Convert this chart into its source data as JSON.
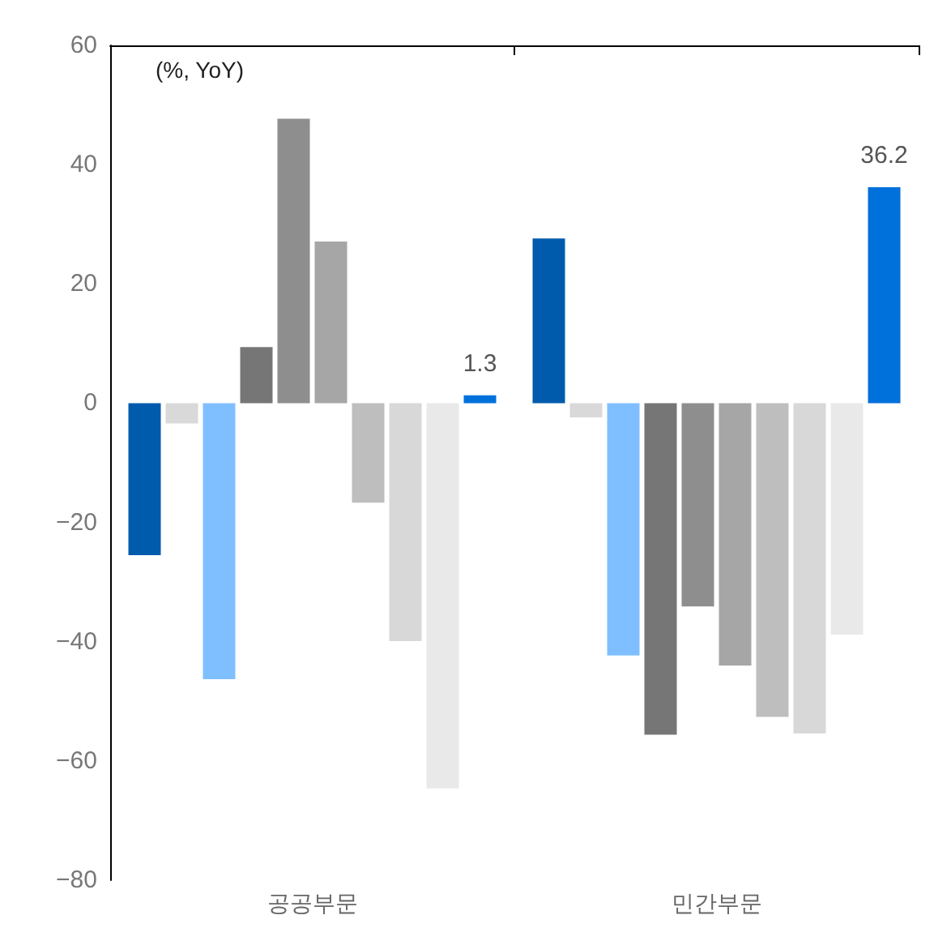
{
  "chart_data": {
    "type": "bar",
    "categories": [
      "공공부문",
      "민간부문"
    ],
    "series": [
      {
        "color": "#005bac",
        "values": [
          -25.5,
          27.6
        ]
      },
      {
        "color": "#d9d9d9",
        "values": [
          -3.4,
          -2.4
        ]
      },
      {
        "color": "#80bfff",
        "values": [
          -46.3,
          -42.3
        ]
      },
      {
        "color": "#767676",
        "values": [
          9.4,
          -55.6
        ]
      },
      {
        "color": "#8e8e8e",
        "values": [
          47.7,
          -34.1
        ]
      },
      {
        "color": "#a6a6a6",
        "values": [
          27.1,
          -44.0
        ]
      },
      {
        "color": "#bebebe",
        "values": [
          -16.7,
          -52.6
        ]
      },
      {
        "color": "#d8d8d8",
        "values": [
          -39.9,
          -55.4
        ]
      },
      {
        "color": "#e9e9e9",
        "values": [
          -64.6,
          -38.8
        ]
      },
      {
        "color": "#0070db",
        "values": [
          1.3,
          36.2
        ],
        "value_labels": [
          "1.3",
          "36.2"
        ]
      }
    ],
    "ylim": [
      -80,
      60
    ],
    "yticks": [
      {
        "value": -80,
        "label": "−80"
      },
      {
        "value": -60,
        "label": "−60"
      },
      {
        "value": -40,
        "label": "−40"
      },
      {
        "value": -20,
        "label": "−20"
      },
      0,
      20,
      40,
      60
    ],
    "annotations": [
      "(%, YoY)"
    ],
    "grid": false
  }
}
